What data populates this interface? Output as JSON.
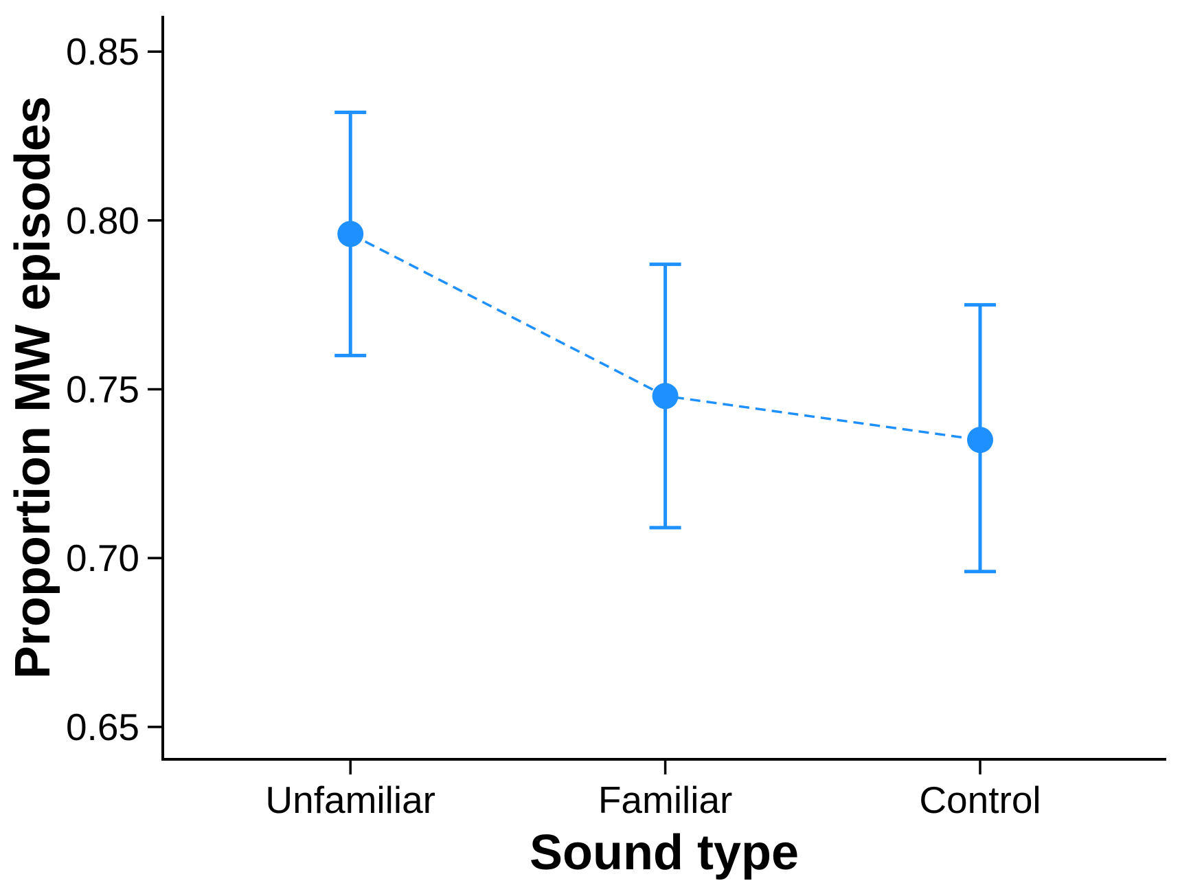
{
  "figure": {
    "background": "#ffffff"
  },
  "chart_data": {
    "type": "line",
    "title": "",
    "xlabel": "Sound type",
    "ylabel": "Proportion MW episodes",
    "categories": [
      "Unfamiliar",
      "Familiar",
      "Control"
    ],
    "means": [
      0.796,
      0.748,
      0.735
    ],
    "ci_lower": [
      0.76,
      0.709,
      0.696
    ],
    "ci_upper": [
      0.832,
      0.787,
      0.775
    ],
    "yticks": [
      0.65,
      0.7,
      0.75,
      0.8,
      0.85
    ],
    "ytick_labels": [
      "0.65",
      "0.70",
      "0.75",
      "0.80",
      "0.85"
    ],
    "ylim": [
      0.6404,
      0.8606
    ],
    "grid": false,
    "legend": false,
    "marker": "filled-circle",
    "line_style": "dashed",
    "series_color": "#1E90FF",
    "axis_color": "#000000"
  }
}
